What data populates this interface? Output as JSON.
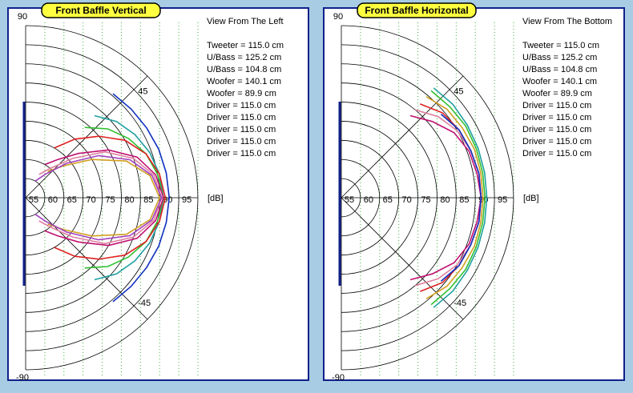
{
  "chart_data": [
    {
      "type": "polar",
      "title": "Front Baffle Vertical",
      "subtitle": "View From The Left",
      "legend": [
        "Tweeter = 115.0 cm",
        "U/Bass = 125.2 cm",
        "U/Bass = 104.8 cm",
        "Woofer = 140.1 cm",
        "Woofer = 89.9 cm",
        "Driver = 115.0 cm",
        "Driver = 115.0 cm",
        "Driver = 115.0 cm",
        "Driver = 115.0 cm",
        "Driver = 115.0 cm"
      ],
      "rlim": [
        50,
        95
      ],
      "rticks": [
        55,
        60,
        65,
        70,
        75,
        80,
        85,
        90,
        95
      ],
      "r_label": "[dB]",
      "angle_ticks": [
        90,
        45,
        -45,
        -90
      ],
      "angles": [
        -60,
        -50,
        -40,
        -30,
        -20,
        -10,
        0,
        10,
        20,
        30,
        40,
        50,
        60
      ],
      "series": [
        {
          "color": "#1030c0",
          "values": [
            null,
            85.5,
            86,
            86.5,
            87,
            87.3,
            87.5,
            87.3,
            87,
            86.5,
            86,
            85.5,
            null
          ]
        },
        {
          "color": "#20a0a0",
          "values": [
            null,
            78,
            81,
            83,
            84.5,
            85.5,
            86,
            85.5,
            84.5,
            83,
            81,
            78,
            null
          ]
        },
        {
          "color": "#30c030",
          "values": [
            null,
            74,
            78,
            81,
            83.5,
            85,
            86,
            85,
            83.5,
            81,
            78,
            74,
            null
          ]
        },
        {
          "color": "#e02020",
          "values": [
            65,
            70,
            75,
            80,
            83.5,
            85.5,
            86.5,
            85.5,
            83.5,
            80,
            75,
            70,
            65
          ]
        },
        {
          "color": "#e080a0",
          "values": [
            57,
            60,
            66,
            74,
            80,
            84,
            85.5,
            84,
            80,
            74,
            66,
            60,
            57
          ]
        },
        {
          "color": "#c01070",
          "values": [
            60,
            63,
            68,
            75,
            81,
            84.5,
            86,
            84.5,
            81,
            75,
            68,
            63,
            60
          ]
        },
        {
          "color": "#d0a020",
          "values": [
            null,
            59,
            63,
            70,
            78,
            83,
            85,
            83,
            78,
            70,
            63,
            59,
            null
          ]
        },
        {
          "color": "#a040c0",
          "values": [
            55,
            58,
            64,
            72,
            79,
            83.5,
            85.5,
            83.5,
            79,
            72,
            64,
            58,
            55
          ]
        }
      ]
    },
    {
      "type": "polar",
      "title": "Front Baffle Horizontal",
      "subtitle": "View From The Bottom",
      "legend": [
        "Tweeter = 115.0 cm",
        "U/Bass = 125.2 cm",
        "U/Bass = 104.8 cm",
        "Woofer = 140.1 cm",
        "Woofer = 89.9 cm",
        "Driver = 115.0 cm",
        "Driver = 115.0 cm",
        "Driver = 115.0 cm",
        "Driver = 115.0 cm",
        "Driver = 115.0 cm"
      ],
      "rlim": [
        50,
        95
      ],
      "rticks": [
        55,
        60,
        65,
        70,
        75,
        80,
        85,
        90,
        95
      ],
      "r_label": "[dB]",
      "angle_ticks": [
        90,
        45,
        -45,
        -90
      ],
      "angles": [
        -60,
        -50,
        -40,
        -30,
        -20,
        -10,
        0,
        10,
        20,
        30,
        40,
        50,
        60
      ],
      "series": [
        {
          "color": "#20a0a0",
          "values": [
            null,
            87.5,
            88,
            88,
            88,
            88,
            88,
            88,
            88,
            88,
            88,
            87.5,
            null
          ]
        },
        {
          "color": "#30c030",
          "values": [
            null,
            86.5,
            87,
            87.5,
            87.5,
            87.5,
            87.5,
            87.5,
            87.5,
            87.5,
            87,
            86.5,
            null
          ]
        },
        {
          "color": "#d0a020",
          "values": [
            null,
            84.5,
            86,
            86.5,
            87,
            87,
            87,
            87,
            87,
            86.5,
            86,
            84.5,
            null
          ]
        },
        {
          "color": "#e02020",
          "values": [
            null,
            82,
            84.5,
            85.5,
            86,
            86.5,
            86.5,
            86.5,
            86,
            85.5,
            84.5,
            82,
            null
          ]
        },
        {
          "color": "#e080a0",
          "values": [
            null,
            80,
            83,
            85,
            86,
            86.5,
            86.5,
            86.5,
            86,
            85,
            83,
            80,
            null
          ]
        },
        {
          "color": "#c01070",
          "values": [
            null,
            78,
            81,
            84,
            85.5,
            86,
            86.5,
            86,
            85.5,
            84,
            81,
            78,
            null
          ]
        },
        {
          "color": "#1030c0",
          "values": [
            null,
            null,
            84,
            85.5,
            86,
            86.5,
            86.5,
            86.5,
            86,
            85.5,
            84,
            null,
            null
          ]
        }
      ]
    }
  ]
}
